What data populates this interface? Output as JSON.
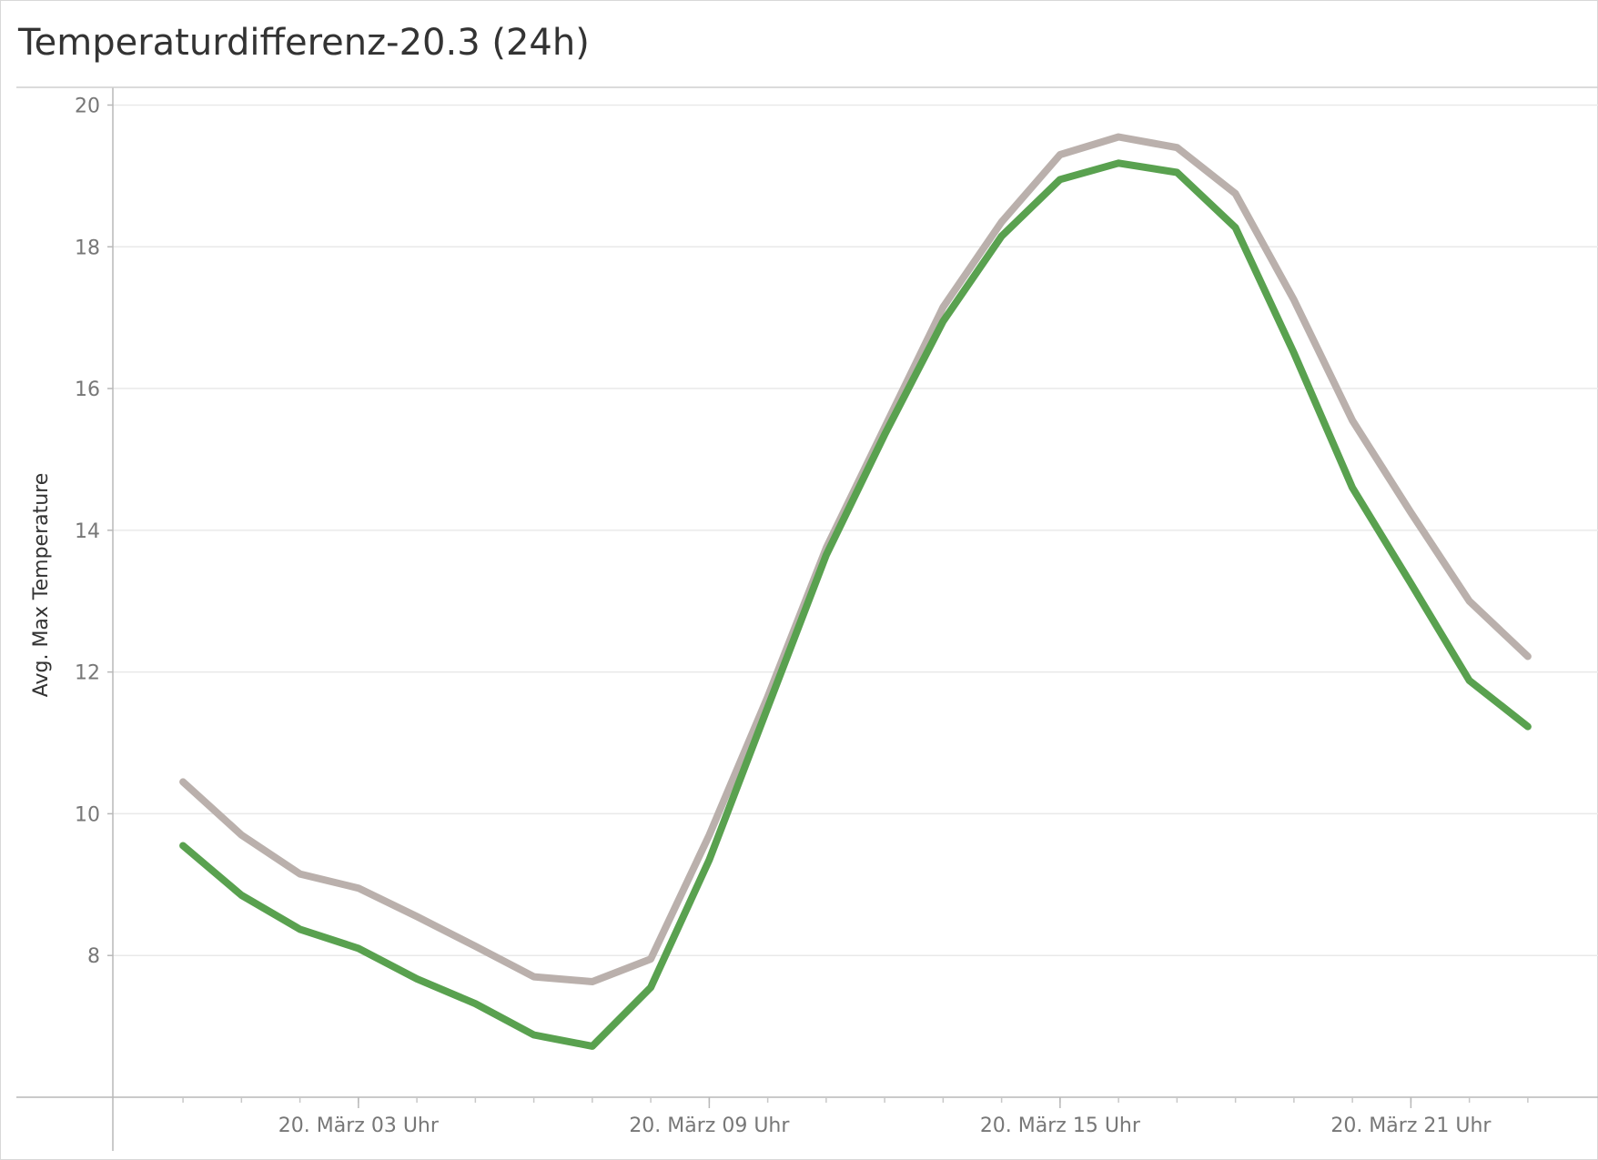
{
  "title": "Temperaturdifferenz-20.3 (24h)",
  "chart_data": {
    "type": "line",
    "title": "Temperaturdifferenz-20.3 (24h)",
    "ylabel": "Avg. Max Temperature",
    "xlabel": "",
    "ylim": [
      6.0,
      20.25
    ],
    "yticks": [
      8,
      10,
      12,
      14,
      16,
      18,
      20
    ],
    "x_hours": [
      0,
      1,
      2,
      3,
      4,
      5,
      6,
      7,
      8,
      9,
      10,
      11,
      12,
      13,
      14,
      15,
      16,
      17,
      18,
      19,
      20,
      21,
      22,
      23
    ],
    "xlim_hours": [
      -1.2,
      24.2
    ],
    "xtick_hours": [
      3,
      9,
      15,
      21
    ],
    "xtick_labels": [
      "20. März 03 Uhr",
      "20. März 09 Uhr",
      "20. März 15 Uhr",
      "20. März 21 Uhr"
    ],
    "grid": true,
    "series": [
      {
        "color": "#bab0ac",
        "values": [
          10.45,
          9.7,
          9.15,
          8.95,
          8.55,
          8.13,
          7.7,
          7.63,
          7.95,
          9.7,
          11.65,
          13.75,
          15.45,
          17.15,
          18.35,
          19.3,
          19.55,
          19.4,
          18.75,
          17.25,
          15.55,
          14.25,
          13.0,
          12.22
        ]
      },
      {
        "color": "#59a14f",
        "values": [
          9.55,
          8.85,
          8.37,
          8.1,
          7.67,
          7.32,
          6.88,
          6.72,
          7.55,
          9.35,
          11.5,
          13.65,
          15.35,
          16.95,
          18.15,
          18.95,
          19.18,
          19.05,
          18.27,
          16.5,
          14.6,
          13.25,
          11.88,
          11.23
        ]
      }
    ]
  }
}
